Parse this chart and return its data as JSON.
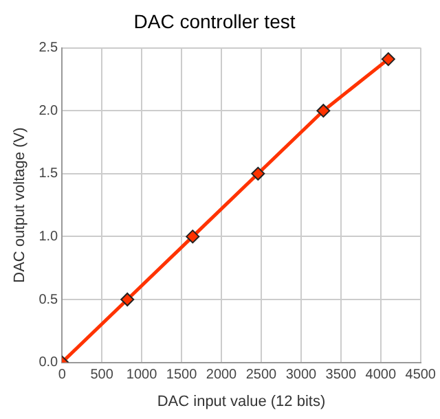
{
  "chart_data": {
    "type": "line",
    "title": "DAC controller test",
    "xlabel": "DAC input value (12 bits)",
    "ylabel": "DAC output voltage (V)",
    "x": [
      0,
      820,
      1640,
      2460,
      3280,
      4095
    ],
    "series": [
      {
        "color": "#ff3300",
        "values": [
          0,
          0.5,
          1.0,
          1.5,
          2.0,
          2.41
        ]
      }
    ],
    "xlim": [
      0,
      4500
    ],
    "xticks": [
      0,
      500,
      1000,
      1500,
      2000,
      2500,
      3000,
      3500,
      4000,
      4500
    ],
    "ylim": [
      0,
      2.5
    ],
    "yticks": [
      {
        "value": 0,
        "label": "0.0"
      },
      {
        "value": 0.5,
        "label": "0.5"
      },
      {
        "value": 1,
        "label": "1.0"
      },
      {
        "value": 1.5,
        "label": "1.5"
      },
      {
        "value": 2,
        "label": "2.0"
      },
      {
        "value": 2.5,
        "label": "2.5"
      }
    ],
    "grid": true,
    "legend": false,
    "marker": "diamond",
    "line_style": "solid"
  }
}
